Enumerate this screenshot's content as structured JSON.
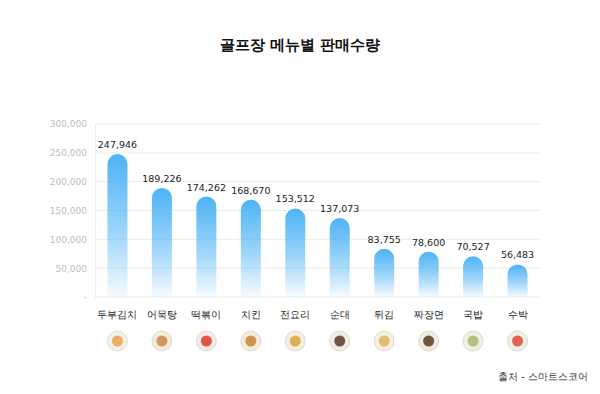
{
  "chart_data": {
    "type": "bar",
    "title": "골프장 메뉴별 판매수량",
    "source": "출처 - 스마트스코어",
    "categories": [
      "두부김치",
      "어묵탕",
      "떡볶이",
      "치킨",
      "전요리",
      "순대",
      "튀김",
      "짜장면",
      "국밥",
      "수박"
    ],
    "values": [
      247946,
      189226,
      174262,
      168670,
      153512,
      137073,
      83755,
      78600,
      70527,
      56483
    ],
    "value_labels": [
      "247,946",
      "189,226",
      "174,262",
      "168,670",
      "153,512",
      "137,073",
      "83,755",
      "78,600",
      "70,527",
      "56,483"
    ],
    "color": "#4db3f5",
    "ylim": [
      0,
      300000
    ],
    "yticks": [
      {
        "value": 0,
        "label": "-"
      },
      {
        "value": 50000,
        "label": "50,000"
      },
      {
        "value": 100000,
        "label": "100,000"
      },
      {
        "value": 150000,
        "label": "150,000"
      },
      {
        "value": 200000,
        "label": "200,000"
      },
      {
        "value": 250000,
        "label": "250,000"
      },
      {
        "value": 300000,
        "label": "300,000"
      }
    ],
    "grid": true,
    "data_labels": true
  }
}
